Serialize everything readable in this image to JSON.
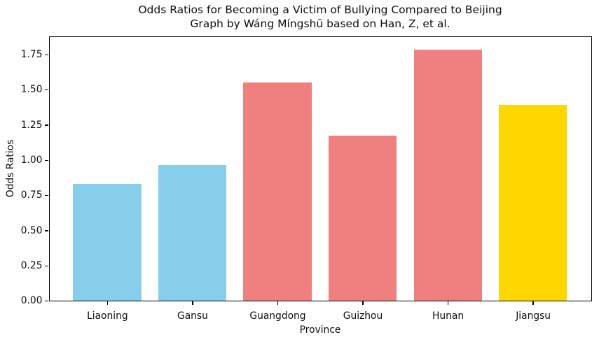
{
  "chart_data": {
    "type": "bar",
    "title": "Odds Ratios for Becoming a Victim of Bullying Compared to Beijing",
    "subtitle": "Graph by Wáng Míngshū based on Han, Z, et al.",
    "xlabel": "Province",
    "ylabel": "Odds Ratios",
    "categories": [
      "Liaoning",
      "Gansu",
      "Guangdong",
      "Guizhou",
      "Hunan",
      "Jiangsu"
    ],
    "values": [
      0.83,
      0.96,
      1.55,
      1.17,
      1.78,
      1.39
    ],
    "bar_colors": [
      "#87CEEB",
      "#87CEEB",
      "#F08080",
      "#F08080",
      "#F08080",
      "#FFD700"
    ],
    "ytick_labels": [
      "0.00",
      "0.25",
      "0.50",
      "0.75",
      "1.00",
      "1.25",
      "1.50",
      "1.75"
    ],
    "ylim": [
      0,
      1.88
    ],
    "xlim": [
      -0.69,
      5.69
    ],
    "bar_rel_width": 0.8,
    "grid": false,
    "legend": false,
    "background": "#FFFFFF",
    "axis_color": "#000000",
    "text_color": "#0F0F0F"
  }
}
